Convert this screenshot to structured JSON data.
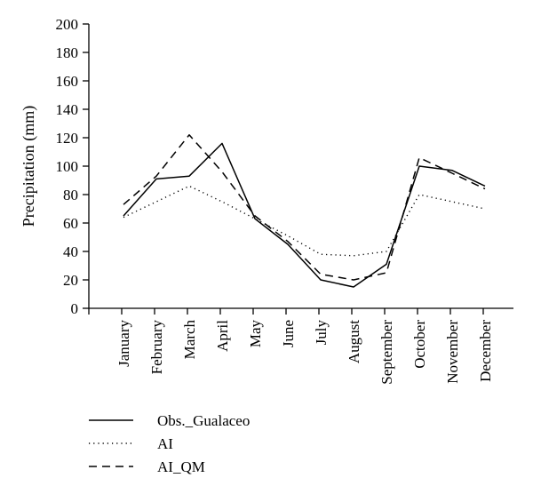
{
  "chart_data": {
    "type": "line",
    "ylabel": "Precipitation (mm)",
    "xlabel": "",
    "categories": [
      "January",
      "February",
      "March",
      "April",
      "May",
      "June",
      "July",
      "August",
      "September",
      "October",
      "November",
      "December"
    ],
    "ylim": [
      0,
      200
    ],
    "yticks": [
      0,
      20,
      40,
      60,
      80,
      100,
      120,
      140,
      160,
      180,
      200
    ],
    "grid": false,
    "legend_position": "bottom-left",
    "series": [
      {
        "name": "Obs._Gualaceo",
        "style": "solid",
        "color": "#000000",
        "values": [
          65,
          91,
          93,
          116,
          63,
          45,
          20,
          15,
          31,
          100,
          97,
          86
        ]
      },
      {
        "name": "AI",
        "style": "dotted",
        "color": "#000000",
        "values": [
          64,
          75,
          86,
          75,
          63,
          51,
          38,
          37,
          40,
          80,
          75,
          70
        ]
      },
      {
        "name": "AI_QM",
        "style": "dashed",
        "color": "#000000",
        "values": [
          73,
          93,
          122,
          96,
          65,
          47,
          24,
          20,
          25,
          106,
          95,
          84
        ]
      }
    ]
  }
}
